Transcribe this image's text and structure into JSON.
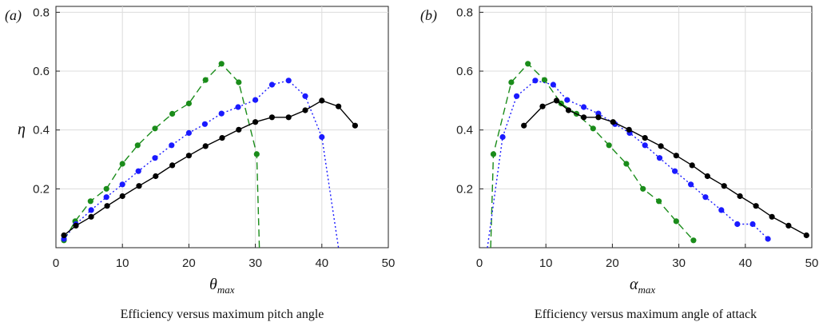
{
  "chart_data": [
    {
      "type": "line",
      "panel_label": "(a)",
      "xlabel": "θ",
      "xlabel_sub": "max",
      "ylabel": "η",
      "caption": "Efficiency versus maximum pitch angle",
      "xlim": [
        0,
        50
      ],
      "ylim": [
        0,
        0.82
      ],
      "xticks": [
        0,
        10,
        20,
        30,
        40,
        50
      ],
      "yticks": [
        0.2,
        0.4,
        0.6,
        0.8
      ],
      "grid": true,
      "series": [
        {
          "color": "#1a8c1a",
          "line_style": "dashed",
          "points": [
            [
              1.2,
              0.025
            ],
            [
              2.9,
              0.09
            ],
            [
              5.2,
              0.158
            ],
            [
              7.6,
              0.2
            ],
            [
              10,
              0.285
            ],
            [
              12.3,
              0.348
            ],
            [
              14.9,
              0.405
            ],
            [
              17.5,
              0.455
            ],
            [
              20,
              0.49
            ],
            [
              22.5,
              0.57
            ],
            [
              24.9,
              0.625
            ],
            [
              27.5,
              0.562
            ],
            [
              30.2,
              0.318
            ]
          ],
          "tail": [
            [
              30.6,
              0.0
            ]
          ]
        },
        {
          "color": "#1a1aff",
          "line_style": "dotted",
          "points": [
            [
              1.2,
              0.03
            ],
            [
              3,
              0.08
            ],
            [
              5.3,
              0.128
            ],
            [
              7.6,
              0.172
            ],
            [
              10,
              0.215
            ],
            [
              12.4,
              0.26
            ],
            [
              14.9,
              0.305
            ],
            [
              17.4,
              0.348
            ],
            [
              20,
              0.39
            ],
            [
              22.4,
              0.42
            ],
            [
              24.9,
              0.456
            ],
            [
              27.4,
              0.478
            ],
            [
              30,
              0.502
            ],
            [
              32.5,
              0.554
            ],
            [
              35,
              0.568
            ],
            [
              37.5,
              0.515
            ],
            [
              40,
              0.376
            ]
          ],
          "tail": [
            [
              42.5,
              0.0
            ]
          ]
        },
        {
          "color": "#000000",
          "line_style": "solid",
          "points": [
            [
              1.2,
              0.042
            ],
            [
              3,
              0.075
            ],
            [
              5.3,
              0.105
            ],
            [
              7.7,
              0.142
            ],
            [
              10,
              0.175
            ],
            [
              12.5,
              0.21
            ],
            [
              15,
              0.243
            ],
            [
              17.5,
              0.28
            ],
            [
              20,
              0.313
            ],
            [
              22.5,
              0.345
            ],
            [
              25,
              0.373
            ],
            [
              27.5,
              0.401
            ],
            [
              30,
              0.427
            ],
            [
              32.5,
              0.443
            ],
            [
              35,
              0.443
            ],
            [
              37.5,
              0.467
            ],
            [
              40,
              0.5
            ],
            [
              42.5,
              0.48
            ],
            [
              45,
              0.415
            ]
          ]
        }
      ]
    },
    {
      "type": "line",
      "panel_label": "(b)",
      "xlabel": "α",
      "xlabel_sub": "max",
      "caption": "Efficiency versus maximum angle of attack",
      "xlim": [
        0,
        50
      ],
      "ylim": [
        0,
        0.82
      ],
      "xticks": [
        0,
        10,
        20,
        30,
        40,
        50
      ],
      "yticks": [
        0.2,
        0.4,
        0.6,
        0.8
      ],
      "grid": true,
      "series": [
        {
          "color": "#1a8c1a",
          "line_style": "dashed",
          "points": [
            [
              2.1,
              0.318
            ],
            [
              4.8,
              0.562
            ],
            [
              7.3,
              0.625
            ],
            [
              9.8,
              0.57
            ],
            [
              12.3,
              0.49
            ],
            [
              14.6,
              0.455
            ],
            [
              17.1,
              0.405
            ],
            [
              19.5,
              0.348
            ],
            [
              22.1,
              0.285
            ],
            [
              24.6,
              0.2
            ],
            [
              27,
              0.158
            ],
            [
              29.6,
              0.09
            ],
            [
              32.2,
              0.025
            ]
          ],
          "head": [
            [
              1.7,
              0.0
            ]
          ]
        },
        {
          "color": "#1a1aff",
          "line_style": "dotted",
          "points": [
            [
              3.5,
              0.376
            ],
            [
              5.6,
              0.515
            ],
            [
              8.4,
              0.568
            ],
            [
              11.1,
              0.554
            ],
            [
              13.2,
              0.502
            ],
            [
              15.7,
              0.478
            ],
            [
              17.9,
              0.456
            ],
            [
              20.4,
              0.42
            ],
            [
              22.6,
              0.39
            ],
            [
              24.9,
              0.348
            ],
            [
              27.1,
              0.305
            ],
            [
              29.4,
              0.26
            ],
            [
              31.8,
              0.215
            ],
            [
              34,
              0.172
            ],
            [
              36.4,
              0.128
            ],
            [
              38.8,
              0.08
            ],
            [
              41.1,
              0.08
            ],
            [
              43.4,
              0.03
            ]
          ],
          "head": [
            [
              1.2,
              0.0
            ]
          ]
        },
        {
          "color": "#000000",
          "line_style": "solid",
          "points": [
            [
              6.7,
              0.415
            ],
            [
              9.5,
              0.48
            ],
            [
              11.6,
              0.5
            ],
            [
              13.4,
              0.467
            ],
            [
              15.7,
              0.443
            ],
            [
              17.9,
              0.443
            ],
            [
              20.1,
              0.427
            ],
            [
              22.5,
              0.401
            ],
            [
              24.9,
              0.373
            ],
            [
              27.3,
              0.345
            ],
            [
              29.6,
              0.313
            ],
            [
              32,
              0.28
            ],
            [
              34.3,
              0.243
            ],
            [
              36.8,
              0.21
            ],
            [
              39.2,
              0.175
            ],
            [
              41.6,
              0.142
            ],
            [
              44,
              0.105
            ],
            [
              46.5,
              0.075
            ],
            [
              49.2,
              0.042
            ]
          ]
        }
      ]
    }
  ]
}
